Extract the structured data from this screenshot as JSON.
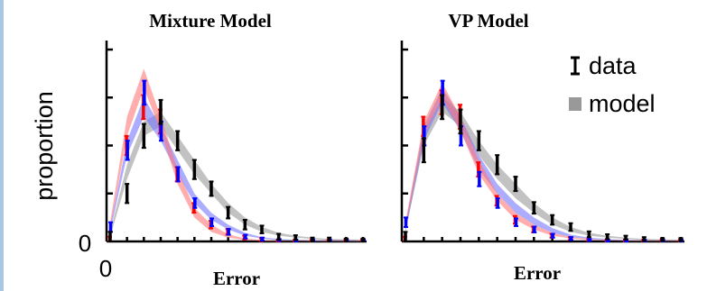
{
  "legend": [
    {
      "label": "data",
      "symbol": "errorbar",
      "color": "#000000"
    },
    {
      "label": "model",
      "symbol": "band",
      "color": "#999999"
    }
  ],
  "y_axis_label": "proportion",
  "x_zero_label": "0",
  "y_zero_label": "0",
  "chart_data": [
    {
      "type": "line",
      "title": "Mixture Model",
      "xlabel": "Error",
      "ylabel": "proportion",
      "x": [
        0,
        1,
        2,
        3,
        4,
        5,
        6,
        7,
        8,
        9,
        10,
        11,
        12,
        13,
        14,
        15
      ],
      "ylim": [
        0,
        0.4
      ],
      "grid": false,
      "legend_position": "right",
      "series": [
        {
          "color": "#000000",
          "values": [
            0.01,
            0.1,
            0.22,
            0.27,
            0.21,
            0.15,
            0.11,
            0.06,
            0.035,
            0.025,
            0.01,
            0.008,
            0.004,
            0.004,
            0.003,
            0.003
          ],
          "errors": [
            0.01,
            0.02,
            0.025,
            0.025,
            0.02,
            0.02,
            0.015,
            0.012,
            0.01,
            0.008,
            0.006,
            0.005,
            0.004,
            0.004,
            0.003,
            0.003
          ]
        },
        {
          "color": "#0000ff",
          "values": [
            0.03,
            0.19,
            0.31,
            0.23,
            0.14,
            0.08,
            0.04,
            0.02,
            0.01,
            0.005,
            0.003,
            0.002,
            0.002,
            0.002,
            0.002,
            0.002
          ],
          "errors": [
            0.01,
            0.02,
            0.025,
            0.02,
            0.015,
            0.01,
            0.008,
            0.006,
            0.004,
            0.003,
            0.002,
            0.002,
            0.002,
            0.002,
            0.002,
            0.002
          ]
        },
        {
          "color": "#ff0000",
          "values": [
            0.005,
            0.2,
            0.28,
            0.25,
            0.14,
            0.07,
            0.035,
            0.02,
            0.008,
            0.004,
            0.002,
            0.002,
            0.002,
            0.002,
            0.002,
            0.002
          ],
          "errors": [
            0.005,
            0.02,
            0.025,
            0.025,
            0.015,
            0.01,
            0.008,
            0.006,
            0.004,
            0.003,
            0.002,
            0.002,
            0.002,
            0.002,
            0.002,
            0.002
          ]
        }
      ],
      "bands": [
        {
          "color": "#999999",
          "lower": [
            0.01,
            0.13,
            0.22,
            0.24,
            0.19,
            0.14,
            0.1,
            0.06,
            0.035,
            0.02,
            0.012,
            0.008,
            0.005,
            0.003,
            0.002,
            0.002
          ],
          "upper": [
            0.02,
            0.16,
            0.25,
            0.27,
            0.22,
            0.17,
            0.12,
            0.08,
            0.05,
            0.03,
            0.018,
            0.012,
            0.008,
            0.005,
            0.004,
            0.003
          ]
        },
        {
          "color": "#7777ff",
          "lower": [
            0.02,
            0.18,
            0.26,
            0.21,
            0.14,
            0.08,
            0.045,
            0.025,
            0.012,
            0.006,
            0.003,
            0.002,
            0.001,
            0.001,
            0.001,
            0.001
          ],
          "upper": [
            0.03,
            0.21,
            0.3,
            0.24,
            0.17,
            0.1,
            0.06,
            0.035,
            0.018,
            0.009,
            0.005,
            0.003,
            0.002,
            0.002,
            0.002,
            0.002
          ]
        },
        {
          "color": "#ff7777",
          "lower": [
            0.025,
            0.22,
            0.32,
            0.23,
            0.12,
            0.05,
            0.02,
            0.008,
            0.003,
            0.001,
            0.0,
            0.0,
            0.0,
            0.0,
            0.0,
            0.0
          ],
          "upper": [
            0.04,
            0.26,
            0.36,
            0.26,
            0.15,
            0.07,
            0.035,
            0.015,
            0.006,
            0.003,
            0.001,
            0.001,
            0.001,
            0.001,
            0.001,
            0.001
          ]
        }
      ]
    },
    {
      "type": "line",
      "title": "VP Model",
      "xlabel": "Error",
      "ylabel": "",
      "x": [
        0,
        1,
        2,
        3,
        4,
        5,
        6,
        7,
        8,
        9,
        10,
        11,
        12,
        13,
        14,
        15
      ],
      "ylim": [
        0,
        0.4
      ],
      "grid": false,
      "series": [
        {
          "color": "#000000",
          "values": [
            0.01,
            0.19,
            0.28,
            0.25,
            0.21,
            0.16,
            0.12,
            0.07,
            0.045,
            0.03,
            0.015,
            0.01,
            0.008,
            0.005,
            0.004,
            0.004
          ],
          "errors": [
            0.01,
            0.025,
            0.025,
            0.025,
            0.02,
            0.02,
            0.015,
            0.012,
            0.01,
            0.008,
            0.006,
            0.005,
            0.004,
            0.004,
            0.003,
            0.003
          ]
        },
        {
          "color": "#0000ff",
          "values": [
            0.04,
            0.22,
            0.31,
            0.22,
            0.13,
            0.08,
            0.04,
            0.025,
            0.012,
            0.006,
            0.003,
            0.002,
            0.002,
            0.002,
            0.002,
            0.002
          ],
          "errors": [
            0.01,
            0.02,
            0.025,
            0.02,
            0.015,
            0.01,
            0.008,
            0.006,
            0.004,
            0.003,
            0.002,
            0.002,
            0.002,
            0.002,
            0.002,
            0.002
          ]
        },
        {
          "color": "#ff0000",
          "values": [
            0.005,
            0.24,
            0.29,
            0.26,
            0.15,
            0.085,
            0.045,
            0.025,
            0.012,
            0.006,
            0.003,
            0.002,
            0.002,
            0.002,
            0.002,
            0.002
          ],
          "errors": [
            0.005,
            0.02,
            0.025,
            0.025,
            0.015,
            0.01,
            0.008,
            0.006,
            0.004,
            0.003,
            0.002,
            0.002,
            0.002,
            0.002,
            0.002,
            0.002
          ]
        }
      ],
      "bands": [
        {
          "color": "#999999",
          "lower": [
            0.02,
            0.2,
            0.27,
            0.24,
            0.18,
            0.13,
            0.09,
            0.06,
            0.035,
            0.02,
            0.012,
            0.008,
            0.005,
            0.003,
            0.002,
            0.002
          ],
          "upper": [
            0.03,
            0.23,
            0.3,
            0.27,
            0.21,
            0.16,
            0.12,
            0.08,
            0.05,
            0.03,
            0.018,
            0.012,
            0.008,
            0.005,
            0.004,
            0.003
          ]
        },
        {
          "color": "#7777ff",
          "lower": [
            0.02,
            0.21,
            0.29,
            0.23,
            0.15,
            0.1,
            0.06,
            0.035,
            0.018,
            0.009,
            0.005,
            0.003,
            0.002,
            0.001,
            0.001,
            0.001
          ],
          "upper": [
            0.035,
            0.24,
            0.32,
            0.26,
            0.18,
            0.12,
            0.08,
            0.05,
            0.028,
            0.014,
            0.008,
            0.005,
            0.003,
            0.002,
            0.002,
            0.002
          ]
        },
        {
          "color": "#ff7777",
          "lower": [
            0.025,
            0.22,
            0.3,
            0.23,
            0.14,
            0.085,
            0.045,
            0.025,
            0.012,
            0.006,
            0.003,
            0.002,
            0.001,
            0.001,
            0.001,
            0.001
          ],
          "upper": [
            0.04,
            0.25,
            0.33,
            0.26,
            0.17,
            0.1,
            0.06,
            0.035,
            0.018,
            0.009,
            0.005,
            0.003,
            0.002,
            0.002,
            0.002,
            0.002
          ]
        }
      ]
    }
  ]
}
